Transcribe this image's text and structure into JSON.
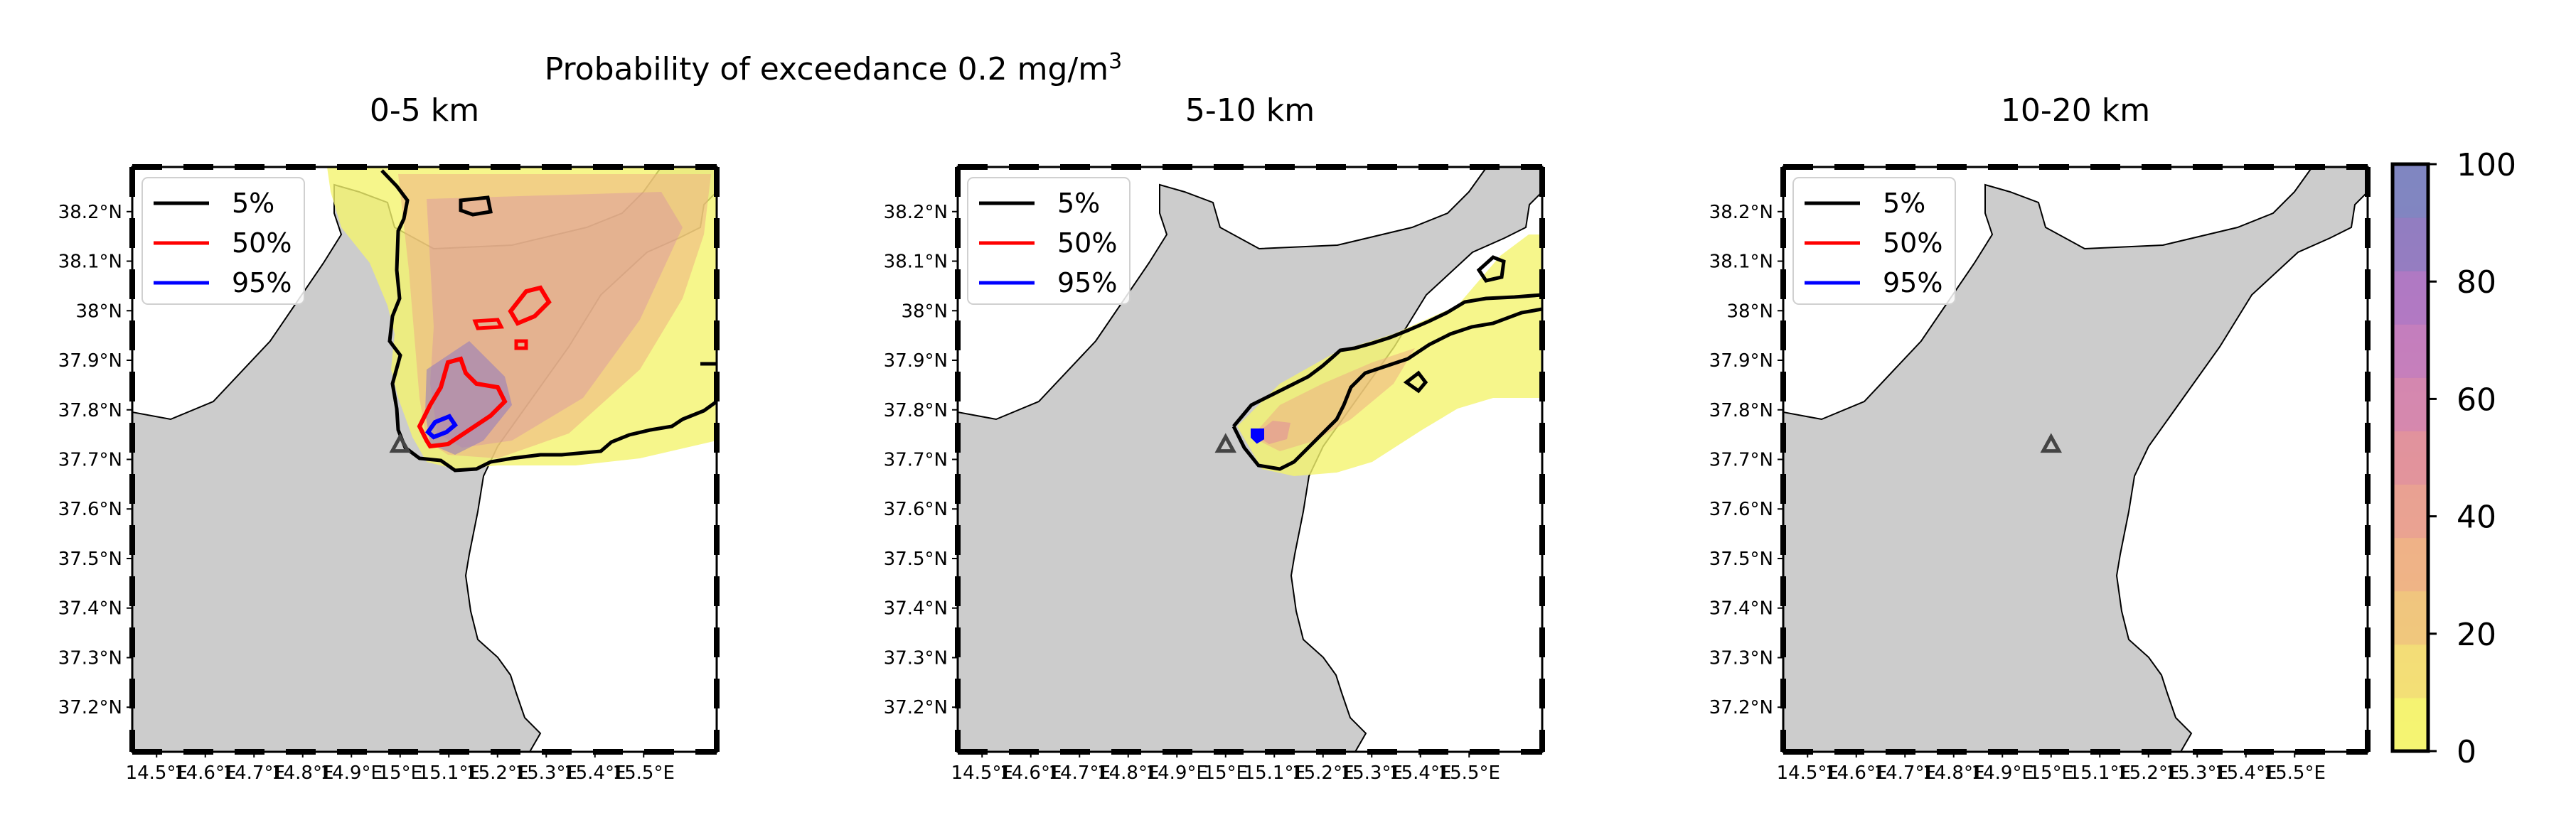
{
  "figure": {
    "suptitle": "Probability of exceedance 0.2 mg/m",
    "suptitle_sup": "3"
  },
  "panels": [
    {
      "title": "0-5 km"
    },
    {
      "title": "5-10 km"
    },
    {
      "title": "10-20 km"
    }
  ],
  "axes": {
    "lat_ticks": [
      "38.2°N",
      "38.1°N",
      "38°N",
      "37.9°N",
      "37.8°N",
      "37.7°N",
      "37.6°N",
      "37.5°N",
      "37.4°N",
      "37.3°N",
      "37.2°N"
    ],
    "lat_values": [
      38.2,
      38.1,
      38.0,
      37.9,
      37.8,
      37.7,
      37.6,
      37.5,
      37.4,
      37.3,
      37.2
    ],
    "lon_ticks": [
      "14.5°E",
      "14.6°E",
      "14.7°E",
      "14.8°E",
      "14.9°E",
      "15°E",
      "15.1°E",
      "15.2°E",
      "15.3°E",
      "15.4°E",
      "15.5°E"
    ],
    "lon_values": [
      14.5,
      14.6,
      14.7,
      14.8,
      14.9,
      15.0,
      15.1,
      15.2,
      15.3,
      15.4,
      15.5
    ],
    "lon_range": [
      14.45,
      15.65
    ],
    "lat_range": [
      37.11,
      38.29
    ]
  },
  "legend": {
    "placement": "upper-left",
    "items": [
      {
        "label": "5%",
        "color": "#000000"
      },
      {
        "label": "50%",
        "color": "#ff0000"
      },
      {
        "label": "95%",
        "color": "#0000ff"
      }
    ]
  },
  "colorbar": {
    "min": 0,
    "max": 100,
    "ticks": [
      "0",
      "20",
      "40",
      "60",
      "80",
      "100"
    ],
    "colors": [
      "#f4f46e",
      "#f2de73",
      "#f0c57a",
      "#eeb184",
      "#e9a08f",
      "#e1919a",
      "#d485ad",
      "#c37bbb",
      "#ae76c2",
      "#8f7abf",
      "#7d84bf"
    ]
  },
  "colors": {
    "land": "#cccccc",
    "sea": "#ffffff",
    "volcano_marker": "#444444"
  },
  "volcano": {
    "lon": 15.0,
    "lat": 37.73
  }
}
